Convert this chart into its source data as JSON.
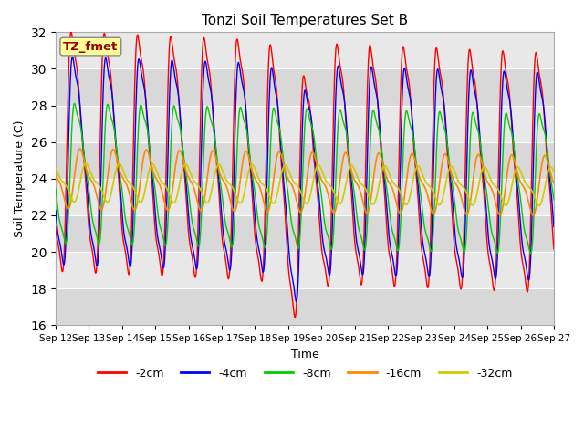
{
  "title": "Tonzi Soil Temperatures Set B",
  "xlabel": "Time",
  "ylabel": "Soil Temperature (C)",
  "ylim": [
    16,
    32
  ],
  "yticks": [
    16,
    18,
    20,
    22,
    24,
    26,
    28,
    30,
    32
  ],
  "colors": {
    "-2cm": "#ff0000",
    "-4cm": "#0000ff",
    "-8cm": "#00cc00",
    "-16cm": "#ff8800",
    "-32cm": "#cccc00"
  },
  "legend_labels": [
    "-2cm",
    "-4cm",
    "-8cm",
    "-16cm",
    "-32cm"
  ],
  "annotation_text": "TZ_fmet",
  "annotation_fg": "#990000",
  "annotation_bg": "#ffff99",
  "background_color": "#ffffff",
  "stripe_dark": "#d8d8d8",
  "stripe_light": "#e8e8e8",
  "n_days": 15,
  "start_day": 12,
  "figsize": [
    6.4,
    4.8
  ],
  "dpi": 100
}
